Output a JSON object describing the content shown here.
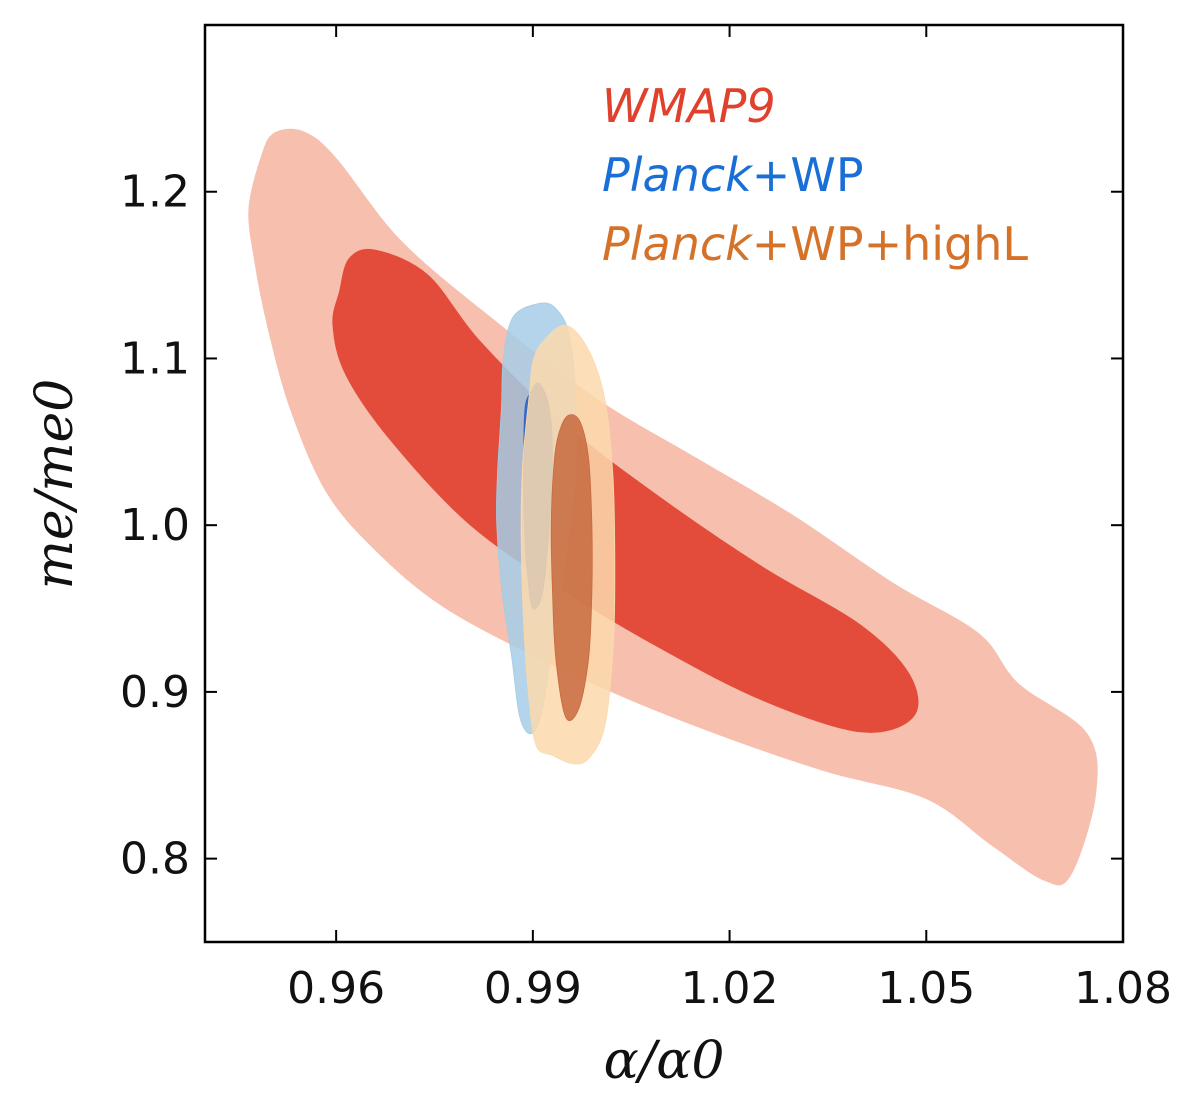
{
  "chart_data": {
    "type": "contour",
    "title": "",
    "xlabel": "α/α0",
    "ylabel": "me/me0",
    "xlim": [
      0.94,
      1.08
    ],
    "ylim": [
      0.75,
      1.3
    ],
    "x_ticks": [
      {
        "value": 0.96,
        "label": "0.96"
      },
      {
        "value": 0.99,
        "label": "0.99"
      },
      {
        "value": 1.02,
        "label": "1.02"
      },
      {
        "value": 1.05,
        "label": "1.05"
      },
      {
        "value": 1.08,
        "label": "1.08"
      }
    ],
    "y_ticks": [
      {
        "value": 0.8,
        "label": "0.8"
      },
      {
        "value": 0.9,
        "label": "0.9"
      },
      {
        "value": 1.0,
        "label": "1.0"
      },
      {
        "value": 1.1,
        "label": "1.1"
      },
      {
        "value": 1.2,
        "label": "1.2"
      }
    ],
    "legend_position": "top-right",
    "series": [
      {
        "name": "WMAP9",
        "legend_main": "WMAP9",
        "legend_suffix": "",
        "legend_italic": true,
        "legend_color": "#e0402c",
        "contours": [
          {
            "level": "95%",
            "color": "#f7bfad",
            "points": [
              [
                0.9505,
                1.235
              ],
              [
                0.9485,
                1.22
              ],
              [
                0.9467,
                1.19
              ],
              [
                0.9475,
                1.16
              ],
              [
                0.9495,
                1.12
              ],
              [
                0.953,
                1.07
              ],
              [
                0.9585,
                1.02
              ],
              [
                0.966,
                0.985
              ],
              [
                0.976,
                0.952
              ],
              [
                0.99,
                0.922
              ],
              [
                1.005,
                0.895
              ],
              [
                1.02,
                0.872
              ],
              [
                1.035,
                0.852
              ],
              [
                1.05,
                0.836
              ],
              [
                1.06,
                0.808
              ],
              [
                1.068,
                0.787
              ],
              [
                1.072,
                0.79
              ],
              [
                1.0758,
                0.838
              ],
              [
                1.0745,
                0.875
              ],
              [
                1.064,
                0.905
              ],
              [
                1.058,
                0.935
              ],
              [
                1.045,
                0.965
              ],
              [
                1.03,
                1.005
              ],
              [
                1.015,
                1.04
              ],
              [
                1.0,
                1.075
              ],
              [
                0.985,
                1.12
              ],
              [
                0.97,
                1.17
              ],
              [
                0.96,
                1.22
              ],
              [
                0.955,
                1.236
              ]
            ]
          },
          {
            "level": "68%",
            "color": "#e34c3a",
            "points": [
              [
                0.9605,
                1.14
              ],
              [
                0.9595,
                1.12
              ],
              [
                0.9615,
                1.09
              ],
              [
                0.9685,
                1.05
              ],
              [
                0.9805,
                1.0
              ],
              [
                0.995,
                0.96
              ],
              [
                1.01,
                0.925
              ],
              [
                1.025,
                0.895
              ],
              [
                1.04,
                0.876
              ],
              [
                1.048,
                0.885
              ],
              [
                1.0475,
                0.91
              ],
              [
                1.04,
                0.94
              ],
              [
                1.025,
                0.975
              ],
              [
                1.01,
                1.015
              ],
              [
                0.995,
                1.06
              ],
              [
                0.982,
                1.11
              ],
              [
                0.974,
                1.15
              ],
              [
                0.966,
                1.165
              ],
              [
                0.962,
                1.16
              ]
            ]
          }
        ]
      },
      {
        "name": "Planck+WP",
        "legend_main": "Planck",
        "legend_suffix": "+WP",
        "legend_italic": true,
        "legend_color": "#1a6fd6",
        "contours": [
          {
            "level": "95%",
            "color": "#a6cde6",
            "opacity": 0.85,
            "points": [
              [
                0.9855,
                1.1
              ],
              [
                0.9852,
                1.07
              ],
              [
                0.9846,
                1.03
              ],
              [
                0.9845,
                1.0
              ],
              [
                0.9853,
                0.96
              ],
              [
                0.9868,
                0.92
              ],
              [
                0.988,
                0.885
              ],
              [
                0.9898,
                0.875
              ],
              [
                0.9915,
                0.89
              ],
              [
                0.993,
                0.93
              ],
              [
                0.995,
                0.98
              ],
              [
                0.9965,
                1.03
              ],
              [
                0.9965,
                1.08
              ],
              [
                0.9955,
                1.115
              ],
              [
                0.9935,
                1.13
              ],
              [
                0.991,
                1.133
              ],
              [
                0.987,
                1.125
              ]
            ]
          },
          {
            "level": "68%",
            "color": "#2f62c8",
            "opacity": 0.9,
            "points": [
              [
                0.9888,
                1.07
              ],
              [
                0.9886,
                1.04
              ],
              [
                0.9887,
                1.0
              ],
              [
                0.9892,
                0.97
              ],
              [
                0.99,
                0.95
              ],
              [
                0.9915,
                0.96
              ],
              [
                0.9925,
                1.0
              ],
              [
                0.993,
                1.04
              ],
              [
                0.9925,
                1.07
              ],
              [
                0.991,
                1.085
              ],
              [
                0.9897,
                1.08
              ]
            ]
          }
        ]
      },
      {
        "name": "Planck+WP+highL",
        "legend_main": "Planck",
        "legend_suffix": "+WP+highL",
        "legend_italic": true,
        "legend_color": "#d4722a",
        "contours": [
          {
            "level": "95%",
            "color": "#fbd9ad",
            "opacity": 0.85,
            "points": [
              [
                0.9895,
                1.08
              ],
              [
                0.9885,
                1.04
              ],
              [
                0.9882,
                1.0
              ],
              [
                0.9885,
                0.95
              ],
              [
                0.9893,
                0.9
              ],
              [
                0.9905,
                0.868
              ],
              [
                0.993,
                0.862
              ],
              [
                0.996,
                0.857
              ],
              [
                0.9985,
                0.86
              ],
              [
                1.001,
                0.88
              ],
              [
                1.0023,
                0.93
              ],
              [
                1.0025,
                0.98
              ],
              [
                1.0022,
                1.03
              ],
              [
                1.001,
                1.075
              ],
              [
                0.9985,
                1.105
              ],
              [
                0.995,
                1.12
              ],
              [
                0.9915,
                1.11
              ],
              [
                0.99,
                1.098
              ]
            ]
          },
          {
            "level": "68%",
            "color": "#c86a3e",
            "opacity": 0.85,
            "points": [
              [
                0.9933,
                1.04
              ],
              [
                0.9928,
                1.0
              ],
              [
                0.993,
                0.96
              ],
              [
                0.9935,
                0.92
              ],
              [
                0.995,
                0.885
              ],
              [
                0.997,
                0.89
              ],
              [
                0.9985,
                0.92
              ],
              [
                0.999,
                0.96
              ],
              [
                0.999,
                1.0
              ],
              [
                0.9985,
                1.04
              ],
              [
                0.9972,
                1.062
              ],
              [
                0.9955,
                1.066
              ],
              [
                0.9942,
                1.058
              ]
            ]
          }
        ]
      }
    ]
  },
  "colors": {
    "background": "#ffffff",
    "axis": "#000000"
  }
}
